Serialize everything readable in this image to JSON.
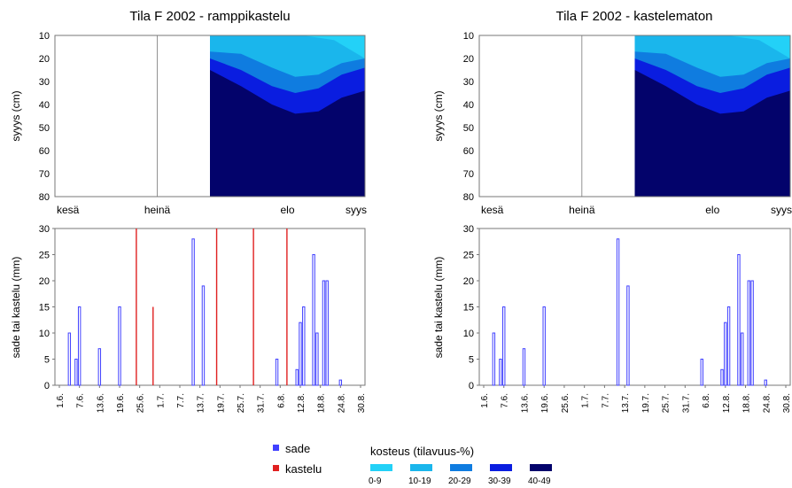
{
  "chart_data": [
    {
      "type": "heatmap",
      "title": "Tila F 2002 - ramppikastelu",
      "ylabel": "syyys (cm)",
      "yticks": [
        10,
        20,
        30,
        40,
        50,
        60,
        70,
        80
      ],
      "ylim": [
        10,
        80
      ],
      "xcategories": [
        "kesä",
        "heinä",
        "elo",
        "syys"
      ],
      "data_start_month": "elo",
      "bands": [
        {
          "class": "10-19",
          "color": "#1ab6ec",
          "boundary_depths": [
            [
              0,
              10
            ],
            [
              0.32,
              10
            ],
            [
              0.6,
              10
            ],
            [
              0.8,
              12
            ],
            [
              0.9,
              16
            ],
            [
              1,
              20
            ]
          ]
        },
        {
          "class": "20-29",
          "color": "#0f7ce0",
          "boundary_depths": [
            [
              0,
              17
            ],
            [
              0.2,
              18
            ],
            [
              0.4,
              24
            ],
            [
              0.55,
              28
            ],
            [
              0.7,
              27
            ],
            [
              0.85,
              22
            ],
            [
              1,
              20
            ]
          ]
        },
        {
          "class": "30-39",
          "color": "#0a1de0",
          "boundary_depths": [
            [
              0,
              20
            ],
            [
              0.2,
              25
            ],
            [
              0.4,
              32
            ],
            [
              0.55,
              35
            ],
            [
              0.7,
              33
            ],
            [
              0.85,
              27
            ],
            [
              1,
              24
            ]
          ]
        },
        {
          "class": "40-49",
          "color": "#03036b",
          "boundary_depths": [
            [
              0,
              25
            ],
            [
              0.2,
              32
            ],
            [
              0.4,
              40
            ],
            [
              0.55,
              44
            ],
            [
              0.7,
              43
            ],
            [
              0.85,
              37
            ],
            [
              1,
              34
            ]
          ]
        }
      ],
      "surface_color": "#23d1f7"
    },
    {
      "type": "heatmap",
      "title": "Tila F 2002 - kastelematon",
      "ylabel": "syyys (cm)",
      "yticks": [
        10,
        20,
        30,
        40,
        50,
        60,
        70,
        80
      ],
      "ylim": [
        10,
        80
      ],
      "xcategories": [
        "kesä",
        "heinä",
        "elo",
        "syys"
      ],
      "data_start_month": "elo",
      "bands": [
        {
          "class": "10-19",
          "color": "#1ab6ec",
          "boundary_depths": [
            [
              0,
              10
            ],
            [
              0.32,
              10
            ],
            [
              0.6,
              10
            ],
            [
              0.8,
              12
            ],
            [
              0.9,
              16
            ],
            [
              1,
              20
            ]
          ]
        },
        {
          "class": "20-29",
          "color": "#0f7ce0",
          "boundary_depths": [
            [
              0,
              17
            ],
            [
              0.2,
              18
            ],
            [
              0.4,
              24
            ],
            [
              0.55,
              28
            ],
            [
              0.7,
              27
            ],
            [
              0.85,
              22
            ],
            [
              1,
              20
            ]
          ]
        },
        {
          "class": "30-39",
          "color": "#0a1de0",
          "boundary_depths": [
            [
              0,
              20
            ],
            [
              0.2,
              25
            ],
            [
              0.4,
              32
            ],
            [
              0.55,
              35
            ],
            [
              0.7,
              33
            ],
            [
              0.85,
              27
            ],
            [
              1,
              24
            ]
          ]
        },
        {
          "class": "40-49",
          "color": "#03036b",
          "boundary_depths": [
            [
              0,
              25
            ],
            [
              0.2,
              32
            ],
            [
              0.4,
              40
            ],
            [
              0.55,
              44
            ],
            [
              0.7,
              43
            ],
            [
              0.85,
              37
            ],
            [
              1,
              34
            ]
          ]
        }
      ],
      "surface_color": "#23d1f7"
    },
    {
      "type": "bar",
      "ylabel": "sade tai kastelu (mm)",
      "ylim": [
        0,
        30
      ],
      "yticks": [
        0,
        5,
        10,
        15,
        20,
        25,
        30
      ],
      "xlim_day": [
        1,
        91
      ],
      "xticks": [
        {
          "label": "1.6.",
          "day": 1
        },
        {
          "label": "7.6.",
          "day": 7
        },
        {
          "label": "13.6.",
          "day": 13
        },
        {
          "label": "19.6.",
          "day": 19
        },
        {
          "label": "25.6.",
          "day": 25
        },
        {
          "label": "1.7.",
          "day": 31
        },
        {
          "label": "7.7.",
          "day": 37
        },
        {
          "label": "13.7.",
          "day": 43
        },
        {
          "label": "19.7.",
          "day": 49
        },
        {
          "label": "25.7.",
          "day": 55
        },
        {
          "label": "31.7.",
          "day": 61
        },
        {
          "label": "6.8.",
          "day": 67
        },
        {
          "label": "12.8.",
          "day": 73
        },
        {
          "label": "18.8.",
          "day": 79
        },
        {
          "label": "24.8.",
          "day": 85
        },
        {
          "label": "30.8.",
          "day": 91
        }
      ],
      "series": [
        {
          "name": "sade",
          "color": "#4040ff",
          "points": [
            [
              4,
              10
            ],
            [
              6,
              5
            ],
            [
              7,
              15
            ],
            [
              13,
              7
            ],
            [
              19,
              15
            ],
            [
              41,
              28
            ],
            [
              44,
              19
            ],
            [
              66,
              5
            ],
            [
              72,
              3
            ],
            [
              73,
              12
            ],
            [
              74,
              15
            ],
            [
              77,
              25
            ],
            [
              78,
              10
            ],
            [
              80,
              20
            ],
            [
              81,
              20
            ],
            [
              85,
              1
            ]
          ]
        },
        {
          "name": "kastelu",
          "color": "#e02020",
          "points": [
            [
              24,
              30
            ],
            [
              29,
              15
            ],
            [
              48,
              30
            ],
            [
              59,
              30
            ],
            [
              69,
              30
            ]
          ]
        }
      ]
    },
    {
      "type": "bar",
      "ylabel": "sade tai kastelu (mm)",
      "ylim": [
        0,
        30
      ],
      "yticks": [
        0,
        5,
        10,
        15,
        20,
        25,
        30
      ],
      "xlim_day": [
        1,
        91
      ],
      "xticks": [
        {
          "label": "1.6.",
          "day": 1
        },
        {
          "label": "7.6.",
          "day": 7
        },
        {
          "label": "13.6.",
          "day": 13
        },
        {
          "label": "19.6.",
          "day": 19
        },
        {
          "label": "25.6.",
          "day": 25
        },
        {
          "label": "1.7.",
          "day": 31
        },
        {
          "label": "7.7.",
          "day": 37
        },
        {
          "label": "13.7.",
          "day": 43
        },
        {
          "label": "19.7.",
          "day": 49
        },
        {
          "label": "25.7.",
          "day": 55
        },
        {
          "label": "31.7.",
          "day": 61
        },
        {
          "label": "6.8.",
          "day": 67
        },
        {
          "label": "12.8.",
          "day": 73
        },
        {
          "label": "18.8.",
          "day": 79
        },
        {
          "label": "24.8.",
          "day": 85
        },
        {
          "label": "30.8.",
          "day": 91
        }
      ],
      "series": [
        {
          "name": "sade",
          "color": "#4040ff",
          "points": [
            [
              4,
              10
            ],
            [
              6,
              5
            ],
            [
              7,
              15
            ],
            [
              13,
              7
            ],
            [
              19,
              15
            ],
            [
              41,
              28
            ],
            [
              44,
              19
            ],
            [
              66,
              5
            ],
            [
              72,
              3
            ],
            [
              73,
              12
            ],
            [
              74,
              15
            ],
            [
              77,
              25
            ],
            [
              78,
              10
            ],
            [
              80,
              20
            ],
            [
              81,
              20
            ],
            [
              85,
              1
            ]
          ]
        }
      ]
    }
  ],
  "legend": {
    "series": [
      {
        "label": "sade",
        "color": "#4040ff"
      },
      {
        "label": "kastelu",
        "color": "#e02020"
      }
    ],
    "moisture_title": "kosteus (tilavuus-%)",
    "moisture_classes": [
      {
        "label": "0-9",
        "color": "#23d1f7"
      },
      {
        "label": "10-19",
        "color": "#1ab6ec"
      },
      {
        "label": "20-29",
        "color": "#0f7ce0"
      },
      {
        "label": "30-39",
        "color": "#0a1de0"
      },
      {
        "label": "40-49",
        "color": "#03036b"
      }
    ]
  }
}
